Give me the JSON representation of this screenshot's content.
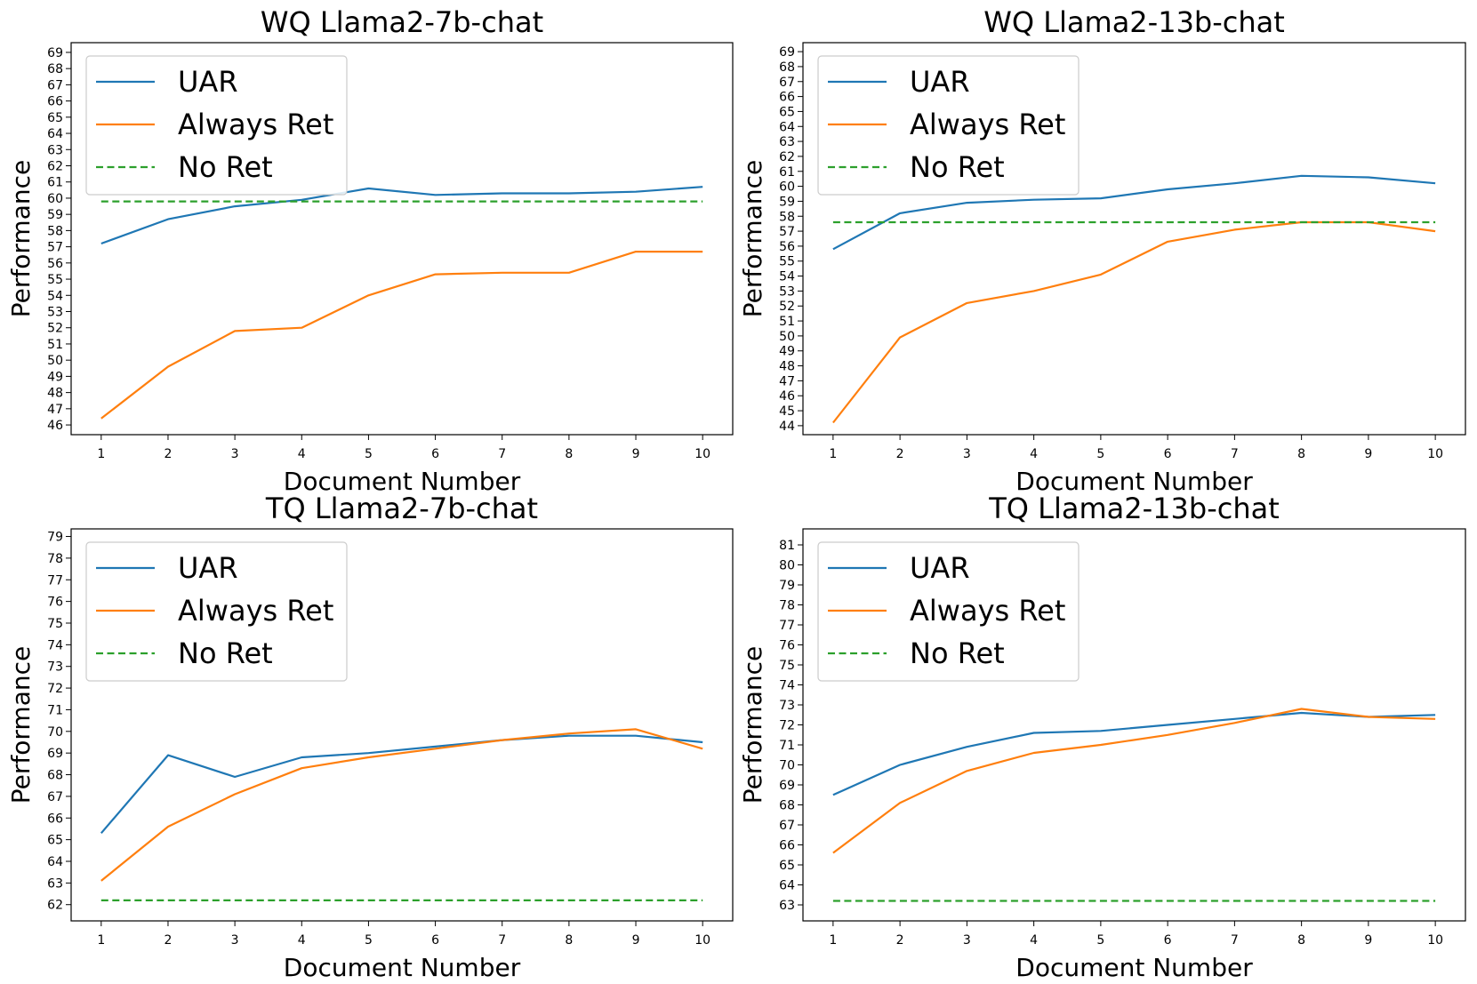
{
  "chart_data": [
    {
      "type": "line",
      "title": "WQ Llama2-7b-chat",
      "xlabel": "Document Number",
      "ylabel": "Performance",
      "x": [
        1,
        2,
        3,
        4,
        5,
        6,
        7,
        8,
        9,
        10
      ],
      "xlim": [
        0.55,
        10.45
      ],
      "ylim": [
        45.4,
        69.6
      ],
      "yticks": [
        46,
        47,
        48,
        49,
        50,
        51,
        52,
        53,
        54,
        55,
        56,
        57,
        58,
        59,
        60,
        61,
        62,
        63,
        64,
        65,
        66,
        67,
        68,
        69
      ],
      "legend_position": "upper-left",
      "grid": false,
      "series": [
        {
          "name": "UAR",
          "style": "solid",
          "color": "#1f77b4",
          "values": [
            57.2,
            58.7,
            59.5,
            59.9,
            60.6,
            60.2,
            60.3,
            60.3,
            60.4,
            60.7
          ]
        },
        {
          "name": "Always Ret",
          "style": "solid",
          "color": "#ff7f0e",
          "values": [
            46.4,
            49.6,
            51.8,
            52.0,
            54.0,
            55.3,
            55.4,
            55.4,
            56.7,
            56.7
          ]
        },
        {
          "name": "No Ret",
          "style": "dashed",
          "color": "#2ca02c",
          "values": [
            59.8,
            59.8,
            59.8,
            59.8,
            59.8,
            59.8,
            59.8,
            59.8,
            59.8,
            59.8
          ]
        }
      ]
    },
    {
      "type": "line",
      "title": "WQ Llama2-13b-chat",
      "xlabel": "Document Number",
      "ylabel": "Performance",
      "x": [
        1,
        2,
        3,
        4,
        5,
        6,
        7,
        8,
        9,
        10
      ],
      "xlim": [
        0.55,
        10.45
      ],
      "ylim": [
        43.4,
        69.6
      ],
      "yticks": [
        44,
        45,
        46,
        47,
        48,
        49,
        50,
        51,
        52,
        53,
        54,
        55,
        56,
        57,
        58,
        59,
        60,
        61,
        62,
        63,
        64,
        65,
        66,
        67,
        68,
        69
      ],
      "legend_position": "upper-left",
      "grid": false,
      "series": [
        {
          "name": "UAR",
          "style": "solid",
          "color": "#1f77b4",
          "values": [
            55.8,
            58.2,
            58.9,
            59.1,
            59.2,
            59.8,
            60.2,
            60.7,
            60.6,
            60.2
          ]
        },
        {
          "name": "Always Ret",
          "style": "solid",
          "color": "#ff7f0e",
          "values": [
            44.2,
            49.9,
            52.2,
            53.0,
            54.1,
            56.3,
            57.1,
            57.6,
            57.6,
            57.0
          ]
        },
        {
          "name": "No Ret",
          "style": "dashed",
          "color": "#2ca02c",
          "values": [
            57.6,
            57.6,
            57.6,
            57.6,
            57.6,
            57.6,
            57.6,
            57.6,
            57.6,
            57.6
          ]
        }
      ]
    },
    {
      "type": "line",
      "title": "TQ Llama2-7b-chat",
      "xlabel": "Document Number",
      "ylabel": "Performance",
      "x": [
        1,
        2,
        3,
        4,
        5,
        6,
        7,
        8,
        9,
        10
      ],
      "xlim": [
        0.55,
        10.45
      ],
      "ylim": [
        61.25,
        79.35
      ],
      "yticks": [
        62,
        63,
        64,
        65,
        66,
        67,
        68,
        69,
        70,
        71,
        72,
        73,
        74,
        75,
        76,
        77,
        78,
        79
      ],
      "legend_position": "upper-left",
      "grid": false,
      "series": [
        {
          "name": "UAR",
          "style": "solid",
          "color": "#1f77b4",
          "values": [
            65.3,
            68.9,
            67.9,
            68.8,
            69.0,
            69.3,
            69.6,
            69.8,
            69.8,
            69.5
          ]
        },
        {
          "name": "Always Ret",
          "style": "solid",
          "color": "#ff7f0e",
          "values": [
            63.1,
            65.6,
            67.1,
            68.3,
            68.8,
            69.2,
            69.6,
            69.9,
            70.1,
            69.2
          ]
        },
        {
          "name": "No Ret",
          "style": "dashed",
          "color": "#2ca02c",
          "values": [
            62.2,
            62.2,
            62.2,
            62.2,
            62.2,
            62.2,
            62.2,
            62.2,
            62.2,
            62.2
          ]
        }
      ]
    },
    {
      "type": "line",
      "title": "TQ Llama2-13b-chat",
      "xlabel": "Document Number",
      "ylabel": "Performance",
      "x": [
        1,
        2,
        3,
        4,
        5,
        6,
        7,
        8,
        9,
        10
      ],
      "xlim": [
        0.55,
        10.45
      ],
      "ylim": [
        62.2,
        81.8
      ],
      "yticks": [
        63,
        64,
        65,
        66,
        67,
        68,
        69,
        70,
        71,
        72,
        73,
        74,
        75,
        76,
        77,
        78,
        79,
        80,
        81
      ],
      "legend_position": "upper-left",
      "grid": false,
      "series": [
        {
          "name": "UAR",
          "style": "solid",
          "color": "#1f77b4",
          "values": [
            68.5,
            70.0,
            70.9,
            71.6,
            71.7,
            72.0,
            72.3,
            72.6,
            72.4,
            72.5
          ]
        },
        {
          "name": "Always Ret",
          "style": "solid",
          "color": "#ff7f0e",
          "values": [
            65.6,
            68.1,
            69.7,
            70.6,
            71.0,
            71.5,
            72.1,
            72.8,
            72.4,
            72.3
          ]
        },
        {
          "name": "No Ret",
          "style": "dashed",
          "color": "#2ca02c",
          "values": [
            63.2,
            63.2,
            63.2,
            63.2,
            63.2,
            63.2,
            63.2,
            63.2,
            63.2,
            63.2
          ]
        }
      ]
    }
  ]
}
